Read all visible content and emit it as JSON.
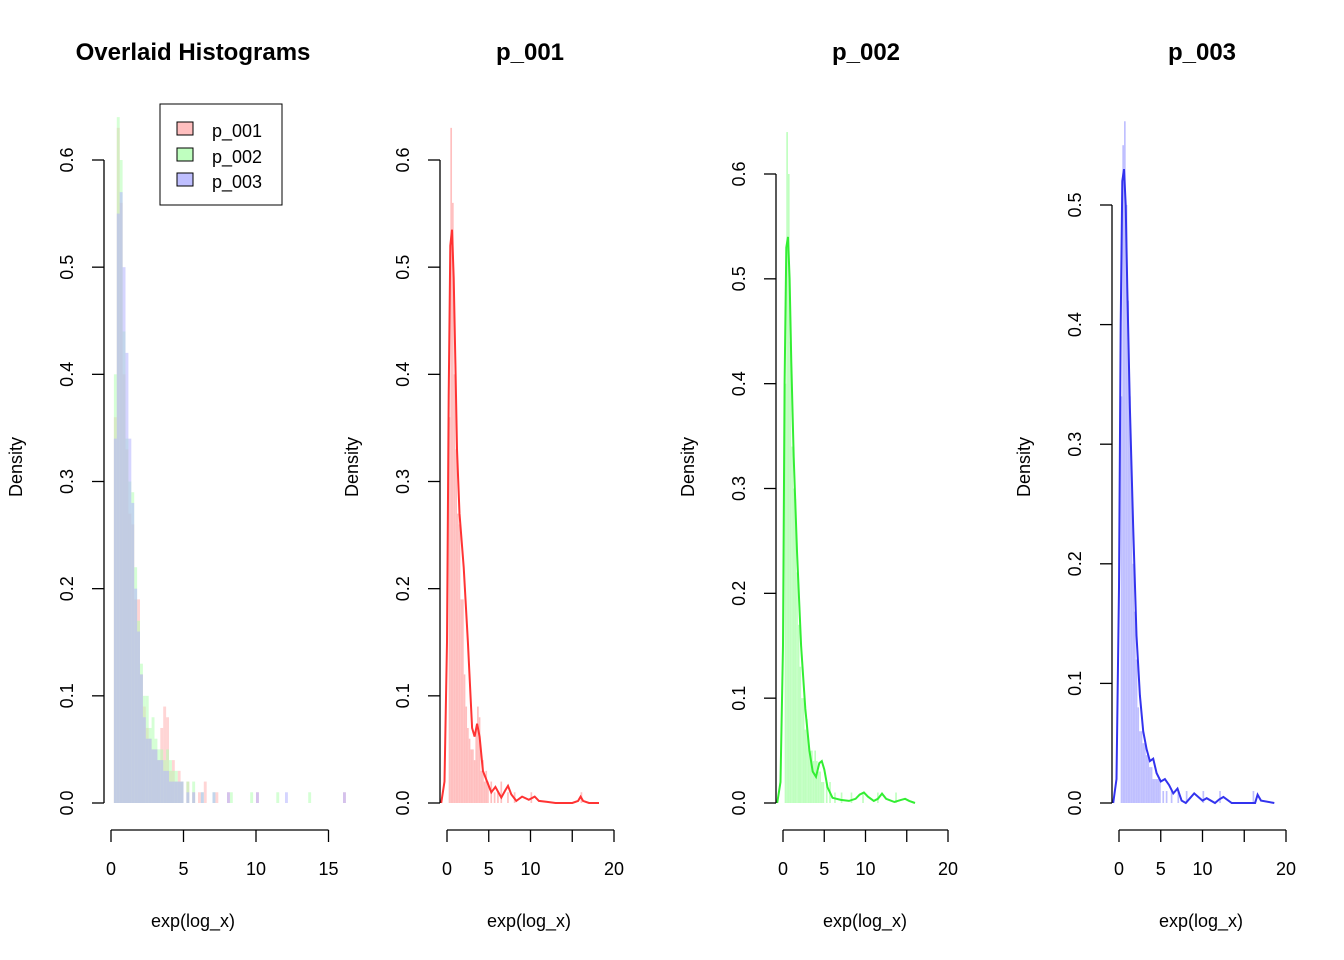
{
  "chart_data": [
    {
      "type": "histogram",
      "title": "Overlaid Histograms",
      "xlabel": "exp(log_x)",
      "ylabel": "Density",
      "xlim": [
        0,
        17
      ],
      "xticks": [
        0,
        5,
        10,
        15
      ],
      "ylim": [
        0,
        0.6
      ],
      "yticks": [
        0.0,
        0.1,
        0.2,
        0.3,
        0.4,
        0.5,
        0.6
      ],
      "grid": false,
      "legend_position": "top-right",
      "legend": [
        {
          "name": "p_001",
          "color": "#ffbfbf"
        },
        {
          "name": "p_002",
          "color": "#bfffbf"
        },
        {
          "name": "p_003",
          "color": "#bfbfff"
        }
      ],
      "series": [
        {
          "name": "p_001",
          "color": "#ffb3b3",
          "opacity": 0.55,
          "x": [
            0.3,
            0.5,
            0.7,
            0.9,
            1.1,
            1.3,
            1.5,
            1.7,
            1.9,
            2.1,
            2.3,
            2.5,
            2.7,
            2.9,
            3.1,
            3.3,
            3.5,
            3.7,
            3.9,
            4.1,
            4.3,
            4.5,
            4.7,
            4.9,
            5.3,
            5.7,
            6.1,
            6.5,
            7.3,
            8.1,
            10.1,
            16.1
          ],
          "y": [
            0.36,
            0.63,
            0.56,
            0.4,
            0.33,
            0.27,
            0.26,
            0.19,
            0.19,
            0.12,
            0.09,
            0.07,
            0.06,
            0.05,
            0.05,
            0.04,
            0.07,
            0.09,
            0.08,
            0.03,
            0.04,
            0.02,
            0.03,
            0.02,
            0.02,
            0.01,
            0.01,
            0.02,
            0.01,
            0.01,
            0.01,
            0.01
          ]
        },
        {
          "name": "p_002",
          "color": "#b3ffb3",
          "opacity": 0.55,
          "x": [
            0.3,
            0.5,
            0.7,
            0.9,
            1.1,
            1.3,
            1.5,
            1.7,
            1.9,
            2.1,
            2.3,
            2.5,
            2.7,
            2.9,
            3.1,
            3.3,
            3.5,
            3.7,
            3.9,
            4.1,
            4.3,
            4.5,
            4.7,
            4.9,
            5.3,
            5.7,
            6.3,
            7.1,
            8.3,
            9.7,
            11.5,
            13.7
          ],
          "y": [
            0.4,
            0.64,
            0.6,
            0.44,
            0.34,
            0.3,
            0.29,
            0.22,
            0.17,
            0.13,
            0.1,
            0.1,
            0.07,
            0.08,
            0.06,
            0.05,
            0.05,
            0.04,
            0.05,
            0.04,
            0.03,
            0.03,
            0.02,
            0.02,
            0.02,
            0.02,
            0.01,
            0.01,
            0.01,
            0.01,
            0.01,
            0.01
          ]
        },
        {
          "name": "p_003",
          "color": "#b3b3ff",
          "opacity": 0.55,
          "x": [
            0.3,
            0.5,
            0.7,
            0.9,
            1.1,
            1.3,
            1.5,
            1.7,
            1.9,
            2.1,
            2.3,
            2.5,
            2.7,
            2.9,
            3.1,
            3.3,
            3.5,
            3.7,
            3.9,
            4.1,
            4.3,
            4.5,
            4.7,
            4.9,
            5.3,
            5.7,
            6.3,
            7.1,
            8.1,
            10.1,
            12.1,
            16.1
          ],
          "y": [
            0.34,
            0.55,
            0.57,
            0.5,
            0.42,
            0.34,
            0.28,
            0.2,
            0.16,
            0.12,
            0.08,
            0.06,
            0.06,
            0.05,
            0.05,
            0.04,
            0.04,
            0.03,
            0.03,
            0.02,
            0.02,
            0.02,
            0.02,
            0.02,
            0.01,
            0.01,
            0.01,
            0.01,
            0.01,
            0.01,
            0.01,
            0.01
          ]
        }
      ]
    },
    {
      "type": "histogram",
      "title": "p_001",
      "xlabel": "exp(log_x)",
      "ylabel": "Density",
      "xlim": [
        -0.8,
        18.5
      ],
      "xticks": [
        0,
        5,
        10,
        15,
        20
      ],
      "xticklabels": [
        "0",
        "5",
        "10",
        "",
        "20"
      ],
      "ylim": [
        0,
        0.6
      ],
      "yticks": [
        0.0,
        0.1,
        0.2,
        0.3,
        0.4,
        0.5,
        0.6
      ],
      "grid": false,
      "hist_color": "#ffbfbf",
      "density_color": "#ff3333",
      "bars": {
        "x": [
          0.3,
          0.5,
          0.7,
          0.9,
          1.1,
          1.3,
          1.5,
          1.7,
          1.9,
          2.1,
          2.3,
          2.5,
          2.7,
          2.9,
          3.1,
          3.3,
          3.5,
          3.7,
          3.9,
          4.1,
          4.3,
          4.5,
          4.7,
          4.9,
          5.3,
          5.7,
          6.1,
          6.5,
          7.3,
          8.1,
          10.1,
          16.1
        ],
        "y": [
          0.36,
          0.63,
          0.56,
          0.4,
          0.33,
          0.27,
          0.26,
          0.19,
          0.19,
          0.12,
          0.09,
          0.07,
          0.06,
          0.05,
          0.05,
          0.04,
          0.07,
          0.09,
          0.08,
          0.03,
          0.04,
          0.02,
          0.03,
          0.02,
          0.02,
          0.01,
          0.01,
          0.02,
          0.01,
          0.01,
          0.01,
          0.01
        ]
      },
      "density": {
        "x": [
          -0.7,
          -0.3,
          0,
          0.2,
          0.4,
          0.6,
          0.8,
          1.0,
          1.2,
          1.5,
          2.0,
          2.5,
          3.0,
          3.3,
          3.6,
          3.9,
          4.3,
          4.8,
          5.3,
          5.8,
          6.5,
          7.0,
          7.3,
          7.7,
          8.3,
          9.0,
          9.8,
          10.5,
          11.0,
          12.0,
          13.0,
          14.0,
          15.0,
          15.7,
          16.0,
          16.3,
          17.0,
          18.2
        ],
        "y": [
          0.0,
          0.02,
          0.15,
          0.38,
          0.52,
          0.535,
          0.49,
          0.41,
          0.33,
          0.27,
          0.22,
          0.15,
          0.07,
          0.062,
          0.074,
          0.062,
          0.03,
          0.02,
          0.01,
          0.015,
          0.005,
          0.012,
          0.016,
          0.008,
          0.002,
          0.006,
          0.003,
          0.006,
          0.002,
          0.001,
          0.0,
          0.0,
          0.0,
          0.002,
          0.006,
          0.002,
          0.0,
          0.0
        ]
      }
    },
    {
      "type": "histogram",
      "title": "p_002",
      "xlabel": "exp(log_x)",
      "ylabel": "Density",
      "xlim": [
        -0.8,
        16.5
      ],
      "xticks": [
        0,
        5,
        10,
        15,
        20
      ],
      "xticklabels": [
        "0",
        "5",
        "10",
        "",
        "20"
      ],
      "ylim": [
        0,
        0.6
      ],
      "yticks": [
        0.0,
        0.1,
        0.2,
        0.3,
        0.4,
        0.5,
        0.6
      ],
      "grid": false,
      "hist_color": "#bfffbf",
      "density_color": "#33ee33",
      "bars": {
        "x": [
          0.3,
          0.5,
          0.7,
          0.9,
          1.1,
          1.3,
          1.5,
          1.7,
          1.9,
          2.1,
          2.3,
          2.5,
          2.7,
          2.9,
          3.1,
          3.3,
          3.5,
          3.7,
          3.9,
          4.1,
          4.3,
          4.5,
          4.7,
          4.9,
          5.3,
          5.7,
          6.3,
          7.1,
          8.3,
          9.7,
          11.5,
          13.7
        ],
        "y": [
          0.4,
          0.64,
          0.6,
          0.44,
          0.34,
          0.3,
          0.29,
          0.22,
          0.17,
          0.13,
          0.1,
          0.1,
          0.07,
          0.08,
          0.06,
          0.05,
          0.05,
          0.04,
          0.05,
          0.04,
          0.03,
          0.03,
          0.02,
          0.02,
          0.02,
          0.02,
          0.01,
          0.01,
          0.01,
          0.01,
          0.01,
          0.01
        ]
      },
      "density": {
        "x": [
          -0.7,
          -0.3,
          0,
          0.2,
          0.4,
          0.6,
          0.8,
          1.0,
          1.3,
          1.7,
          2.2,
          2.7,
          3.2,
          3.6,
          4.0,
          4.4,
          4.7,
          5.0,
          5.4,
          6.0,
          7.0,
          8.0,
          8.8,
          9.3,
          9.8,
          10.3,
          11.0,
          11.5,
          12.0,
          12.5,
          13.5,
          14.3,
          14.8,
          15.3,
          16.0
        ],
        "y": [
          0.0,
          0.02,
          0.15,
          0.4,
          0.53,
          0.54,
          0.5,
          0.42,
          0.33,
          0.24,
          0.15,
          0.09,
          0.05,
          0.03,
          0.025,
          0.038,
          0.04,
          0.032,
          0.015,
          0.005,
          0.003,
          0.002,
          0.004,
          0.008,
          0.01,
          0.006,
          0.002,
          0.004,
          0.009,
          0.004,
          0.001,
          0.003,
          0.004,
          0.002,
          0.0
        ]
      }
    },
    {
      "type": "histogram",
      "title": "p_003",
      "xlabel": "exp(log_x)",
      "ylabel": "Density",
      "xlim": [
        -0.8,
        18.8
      ],
      "xticks": [
        0,
        5,
        10,
        15,
        20
      ],
      "xticklabels": [
        "0",
        "5",
        "10",
        "",
        "20"
      ],
      "ylim": [
        0,
        0.55
      ],
      "yticks": [
        0.0,
        0.1,
        0.2,
        0.3,
        0.4,
        0.5
      ],
      "grid": false,
      "hist_color": "#bfbfff",
      "density_color": "#3333ee",
      "bars": {
        "x": [
          0.3,
          0.5,
          0.7,
          0.9,
          1.1,
          1.3,
          1.5,
          1.7,
          1.9,
          2.1,
          2.3,
          2.5,
          2.7,
          2.9,
          3.1,
          3.3,
          3.5,
          3.7,
          3.9,
          4.1,
          4.3,
          4.5,
          4.7,
          4.9,
          5.3,
          5.7,
          6.3,
          7.1,
          8.1,
          10.1,
          12.1,
          16.1
        ],
        "y": [
          0.34,
          0.55,
          0.57,
          0.5,
          0.42,
          0.34,
          0.28,
          0.2,
          0.16,
          0.12,
          0.08,
          0.06,
          0.06,
          0.05,
          0.05,
          0.04,
          0.04,
          0.03,
          0.03,
          0.02,
          0.02,
          0.02,
          0.02,
          0.02,
          0.01,
          0.01,
          0.01,
          0.01,
          0.01,
          0.01,
          0.01,
          0.01
        ]
      },
      "density": {
        "x": [
          -0.7,
          -0.3,
          0,
          0.2,
          0.4,
          0.6,
          0.8,
          1.0,
          1.3,
          1.7,
          2.1,
          2.5,
          2.9,
          3.3,
          3.7,
          4.1,
          4.5,
          5.0,
          5.5,
          6.0,
          6.5,
          7.0,
          7.5,
          8.0,
          8.5,
          9.0,
          10.0,
          10.5,
          11.5,
          12.0,
          12.5,
          13.5,
          15.0,
          16.3,
          16.6,
          17.0,
          18.6
        ],
        "y": [
          0.0,
          0.02,
          0.18,
          0.4,
          0.52,
          0.53,
          0.5,
          0.43,
          0.33,
          0.23,
          0.14,
          0.09,
          0.06,
          0.045,
          0.035,
          0.037,
          0.025,
          0.018,
          0.02,
          0.015,
          0.008,
          0.012,
          0.002,
          0.0,
          0.004,
          0.008,
          0.002,
          0.004,
          0.0,
          0.003,
          0.005,
          0.0,
          0.0,
          0.0,
          0.007,
          0.002,
          0.0
        ]
      }
    }
  ]
}
